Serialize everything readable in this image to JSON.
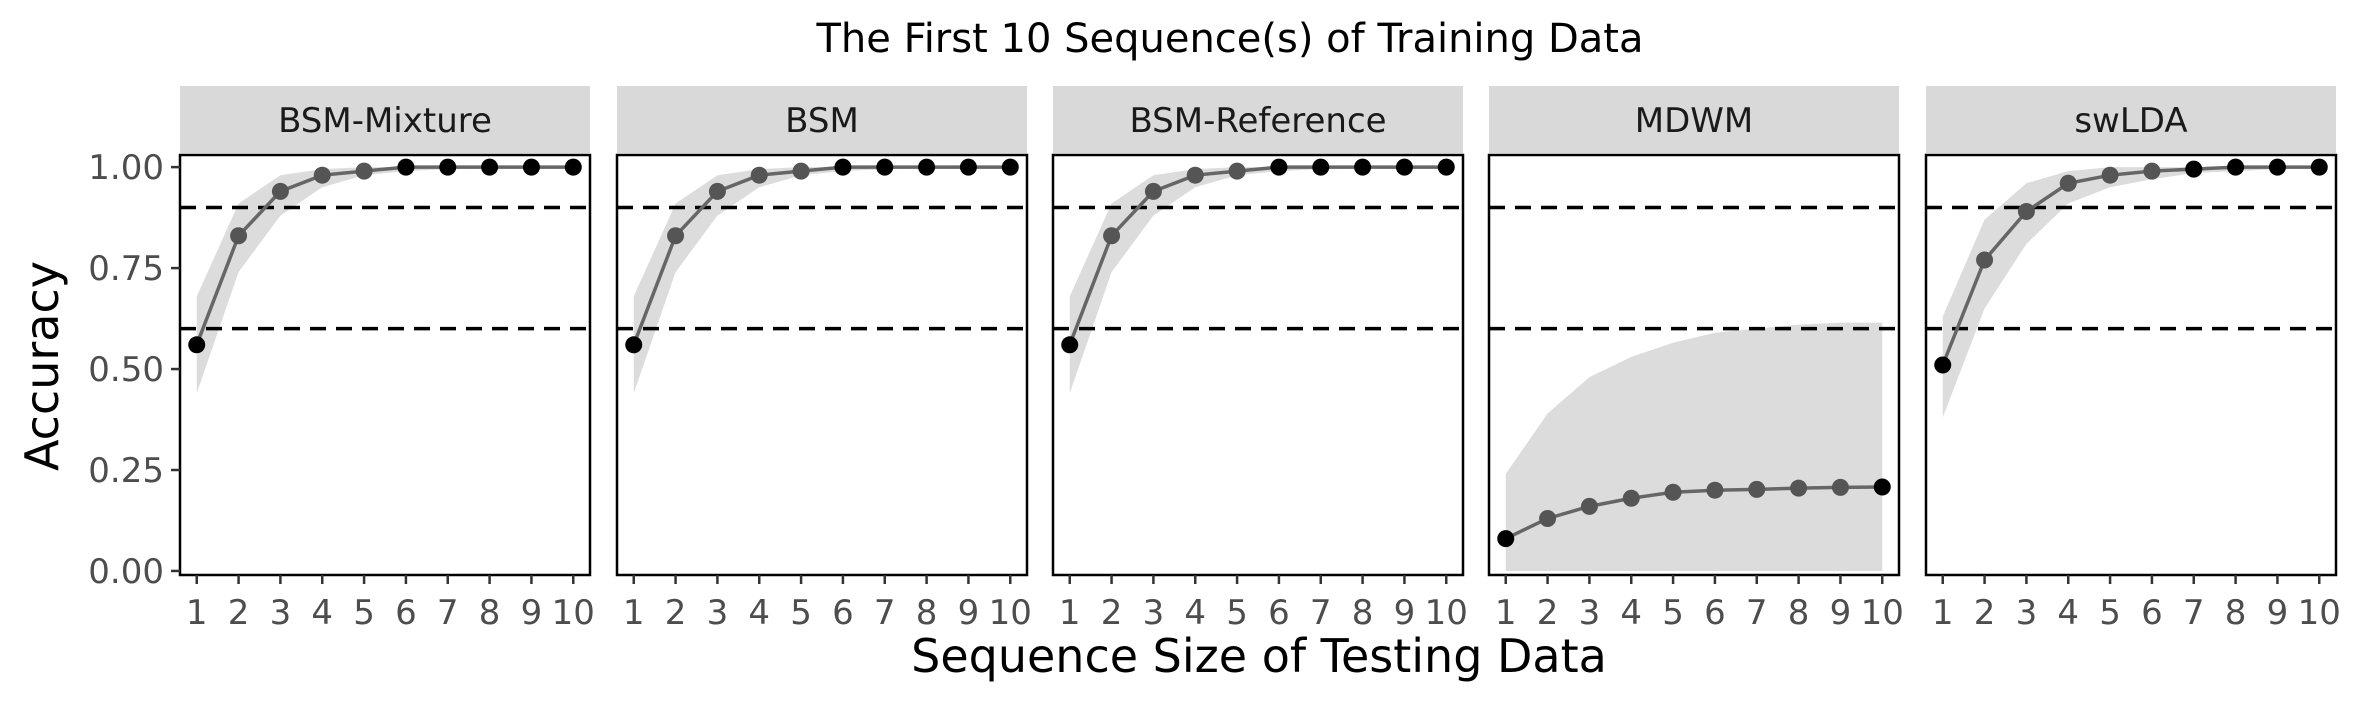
{
  "chart_data": {
    "type": "line",
    "title": "The First 10 Sequence(s) of Training Data",
    "xlabel": "Sequence Size of Testing Data",
    "ylabel": "Accuracy",
    "x": [
      1,
      2,
      3,
      4,
      5,
      6,
      7,
      8,
      9,
      10
    ],
    "x_tick_labels": [
      "1",
      "2",
      "3",
      "4",
      "5",
      "6",
      "7",
      "8",
      "9",
      "10"
    ],
    "y_ticks": [
      0.0,
      0.25,
      0.5,
      0.75,
      1.0
    ],
    "y_tick_labels": [
      "0.00",
      "0.25",
      "0.50",
      "0.75",
      "1.00"
    ],
    "ylim": [
      -0.01,
      1.03
    ],
    "xlim": [
      0.6,
      10.4
    ],
    "reference_lines": [
      0.6,
      0.9
    ],
    "grid": false,
    "colors": {
      "strip_bg": "#d9d9d9",
      "ribbon": "#dcdcdc",
      "line": "#666666",
      "point_below": "#555555",
      "point_above": "#000000",
      "refline": "#000000"
    },
    "panels": [
      {
        "name": "BSM-Mixture",
        "values": [
          0.56,
          0.83,
          0.94,
          0.98,
          0.99,
          1.0,
          1.0,
          1.0,
          1.0,
          1.0
        ],
        "lower": [
          0.44,
          0.74,
          0.88,
          0.95,
          0.98,
          0.99,
          0.995,
          0.997,
          0.998,
          0.999
        ],
        "upper": [
          0.68,
          0.91,
          0.98,
          0.995,
          1.0,
          1.0,
          1.0,
          1.0,
          1.0,
          1.0
        ]
      },
      {
        "name": "BSM",
        "values": [
          0.56,
          0.83,
          0.94,
          0.98,
          0.99,
          1.0,
          1.0,
          1.0,
          1.0,
          1.0
        ],
        "lower": [
          0.44,
          0.74,
          0.88,
          0.95,
          0.98,
          0.99,
          0.995,
          0.997,
          0.998,
          0.999
        ],
        "upper": [
          0.68,
          0.91,
          0.98,
          0.995,
          1.0,
          1.0,
          1.0,
          1.0,
          1.0,
          1.0
        ]
      },
      {
        "name": "BSM-Reference",
        "values": [
          0.56,
          0.83,
          0.94,
          0.98,
          0.99,
          1.0,
          1.0,
          1.0,
          1.0,
          1.0
        ],
        "lower": [
          0.44,
          0.74,
          0.88,
          0.95,
          0.98,
          0.99,
          0.995,
          0.997,
          0.998,
          0.999
        ],
        "upper": [
          0.68,
          0.91,
          0.98,
          0.995,
          1.0,
          1.0,
          1.0,
          1.0,
          1.0,
          1.0
        ]
      },
      {
        "name": "MDWM",
        "values": [
          0.08,
          0.13,
          0.16,
          0.18,
          0.195,
          0.2,
          0.202,
          0.205,
          0.207,
          0.208
        ],
        "lower": [
          0.0,
          0.0,
          0.0,
          0.0,
          0.0,
          0.0,
          0.0,
          0.0,
          0.0,
          0.0
        ],
        "upper": [
          0.24,
          0.39,
          0.48,
          0.53,
          0.565,
          0.59,
          0.6,
          0.61,
          0.615,
          0.615
        ]
      },
      {
        "name": "swLDA",
        "values": [
          0.51,
          0.77,
          0.89,
          0.96,
          0.98,
          0.99,
          0.995,
          1.0,
          1.0,
          1.0
        ],
        "lower": [
          0.38,
          0.65,
          0.81,
          0.91,
          0.95,
          0.97,
          0.985,
          0.99,
          0.995,
          0.998
        ],
        "upper": [
          0.63,
          0.87,
          0.96,
          0.99,
          1.0,
          1.0,
          1.0,
          1.0,
          1.0,
          1.0
        ]
      }
    ]
  }
}
